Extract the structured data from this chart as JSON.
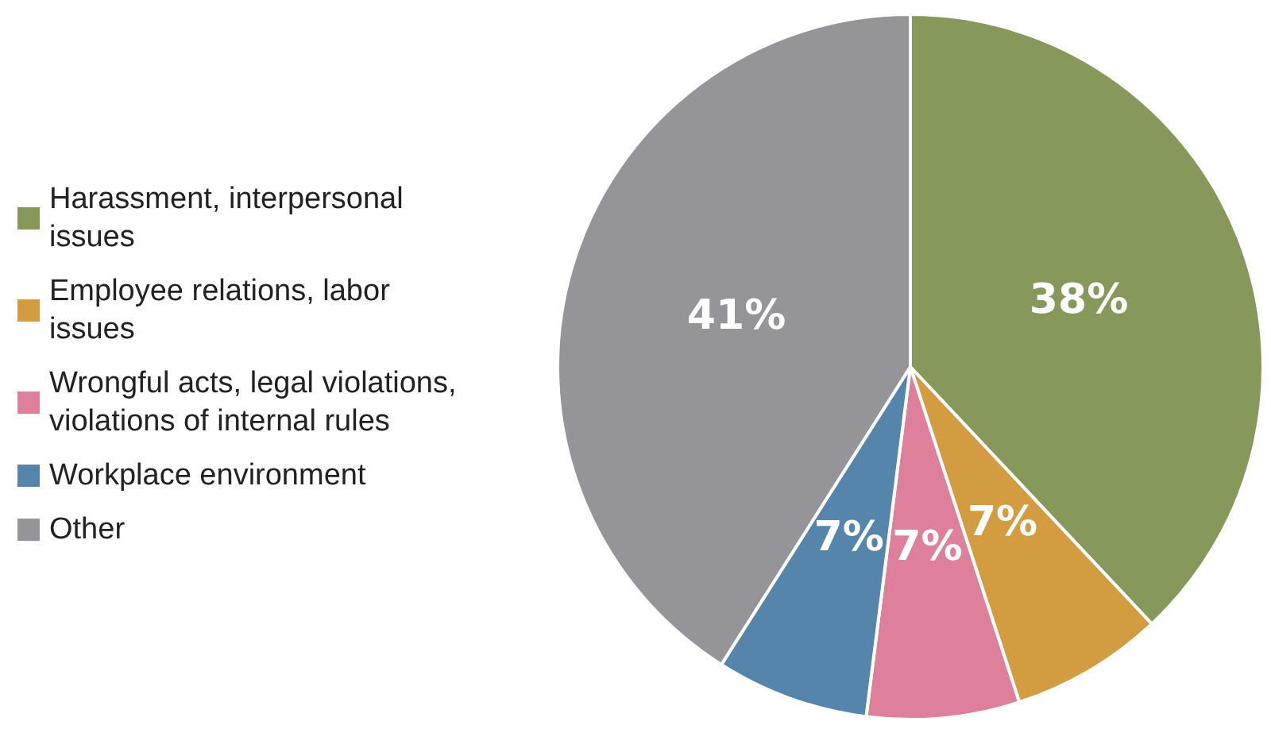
{
  "chart_data": {
    "type": "pie",
    "categories": [
      "Harassment, interpersonal issues",
      "Employee relations, labor issues",
      "Wrongful acts, legal violations, violations of internal rules",
      "Workplace environment",
      "Other"
    ],
    "values": [
      38,
      7,
      7,
      7,
      41
    ],
    "colors": [
      "#86995a",
      "#d49c41",
      "#de7f9b",
      "#5585ab",
      "#949499"
    ],
    "value_labels": [
      "38%",
      "7%",
      "7%",
      "7%",
      "41%"
    ],
    "legend": "left"
  }
}
